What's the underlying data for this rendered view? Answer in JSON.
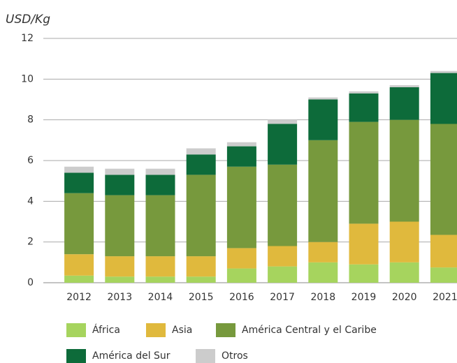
{
  "chart_data": {
    "type": "stacked_bar",
    "title": "USD/Kg",
    "categories": [
      "2012",
      "2013",
      "2014",
      "2015",
      "2016",
      "2017",
      "2018",
      "2019",
      "2020",
      "2021"
    ],
    "series": [
      {
        "name": "África",
        "color": "#a6d45e",
        "values": [
          0.35,
          0.3,
          0.3,
          0.3,
          0.7,
          0.8,
          1.0,
          0.9,
          1.0,
          0.75
        ]
      },
      {
        "name": "Asia",
        "color": "#e0b93d",
        "values": [
          1.05,
          1.0,
          1.0,
          1.0,
          1.0,
          1.0,
          1.0,
          2.0,
          2.0,
          1.6
        ]
      },
      {
        "name": "América Central y el Caribe",
        "color": "#77993d",
        "values": [
          3.0,
          3.0,
          3.0,
          4.0,
          4.0,
          4.0,
          5.0,
          5.0,
          5.0,
          5.45
        ]
      },
      {
        "name": "América del Sur",
        "color": "#0d6b3a",
        "values": [
          1.0,
          1.0,
          1.0,
          1.0,
          1.0,
          2.0,
          2.0,
          1.4,
          1.6,
          2.5
        ]
      },
      {
        "name": "Otros",
        "color": "#cccccc",
        "values": [
          0.3,
          0.3,
          0.3,
          0.3,
          0.2,
          0.2,
          0.1,
          0.1,
          0.1,
          0.1
        ]
      }
    ],
    "ylim": [
      0,
      12
    ],
    "yticks": [
      0,
      2,
      4,
      6,
      8,
      10,
      12
    ],
    "grid": true
  }
}
